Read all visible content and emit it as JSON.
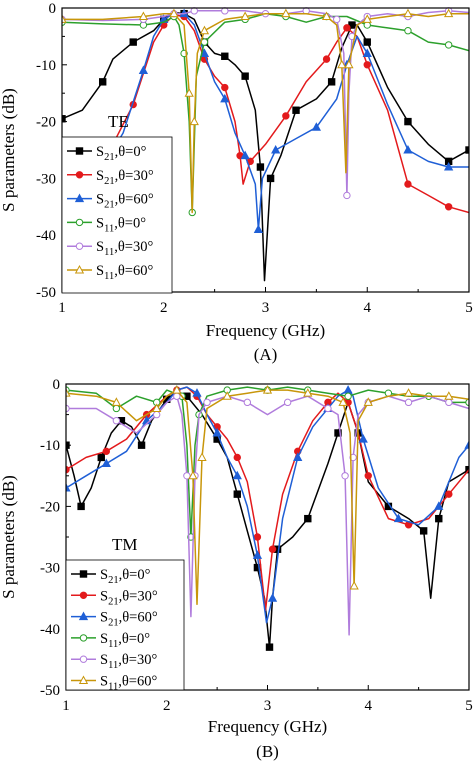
{
  "chart_data": [
    {
      "type": "line",
      "panel_label": "(A)",
      "mode_label": "TE",
      "xlabel": "Frequency (GHz)",
      "ylabel": "S parameters (dB)",
      "xlim": [
        1,
        5
      ],
      "ylim": [
        -50,
        0
      ],
      "xticks": [
        1,
        2,
        3,
        4,
        5
      ],
      "yticks": [
        0,
        -10,
        -20,
        -30,
        -40,
        -50
      ],
      "legend_position": "left",
      "legend_entries": [
        {
          "sub": "21",
          "angle": "0°"
        },
        {
          "sub": "21",
          "angle": "30°"
        },
        {
          "sub": "21",
          "angle": "60°"
        },
        {
          "sub": "11",
          "angle": "0°"
        },
        {
          "sub": "11",
          "angle": "30°"
        },
        {
          "sub": "11",
          "angle": "60°"
        }
      ],
      "series": [
        {
          "color": "#000000",
          "marker": "square",
          "fill": true,
          "x": [
            1.0,
            1.2,
            1.4,
            1.5,
            1.7,
            1.9,
            2.0,
            2.1,
            2.2,
            2.3,
            2.4,
            2.5,
            2.6,
            2.7,
            2.8,
            2.9,
            2.95,
            2.99,
            3.05,
            3.15,
            3.3,
            3.5,
            3.65,
            3.75,
            3.85,
            3.9,
            4.0,
            4.2,
            4.4,
            4.6,
            4.8,
            4.9,
            5.0
          ],
          "y": [
            -19.5,
            -18,
            -13,
            -9,
            -6,
            -4,
            -2,
            -0.8,
            -1,
            -2,
            -6,
            -8,
            -8.5,
            -10,
            -12,
            -18,
            -28,
            -48,
            -30,
            -26,
            -18,
            -16,
            -13,
            -7,
            -3,
            -3,
            -6,
            -14,
            -20,
            -24,
            -27,
            -26,
            -25
          ]
        },
        {
          "color": "#e31a1c",
          "marker": "circle",
          "fill": true,
          "x": [
            1.0,
            1.1,
            1.3,
            1.5,
            1.7,
            1.9,
            2.0,
            2.1,
            2.2,
            2.3,
            2.4,
            2.5,
            2.6,
            2.7,
            2.75,
            2.78,
            2.85,
            3.0,
            3.2,
            3.4,
            3.6,
            3.7,
            3.8,
            3.9,
            4.0,
            4.2,
            4.4,
            4.6,
            4.8,
            5.0
          ],
          "y": [
            -29,
            -28,
            -26,
            -24,
            -17,
            -6,
            -3,
            -1.2,
            -1.5,
            -4,
            -9,
            -12,
            -14,
            -20,
            -26,
            -31,
            -27,
            -24,
            -19,
            -13,
            -9,
            -6,
            -3.5,
            -5,
            -10,
            -18,
            -31,
            -33,
            -35,
            -36
          ]
        },
        {
          "color": "#1f5fd6",
          "marker": "triangle",
          "fill": true,
          "x": [
            1.0,
            1.2,
            1.4,
            1.6,
            1.8,
            1.9,
            2.0,
            2.1,
            2.2,
            2.3,
            2.4,
            2.5,
            2.6,
            2.7,
            2.8,
            2.9,
            2.93,
            2.97,
            3.1,
            3.3,
            3.5,
            3.7,
            3.8,
            3.9,
            4.0,
            4.2,
            4.4,
            4.6,
            4.8,
            5.0
          ],
          "y": [
            -30,
            -30,
            -28,
            -22,
            -11,
            -5,
            -2,
            -1,
            -1,
            -3,
            -8,
            -13,
            -16,
            -22,
            -26,
            -31,
            -39,
            -30,
            -25,
            -23,
            -21,
            -16,
            -10,
            -5,
            -8,
            -17,
            -25,
            -27,
            -28,
            -28
          ]
        },
        {
          "color": "#2ca02c",
          "marker": "circle",
          "fill": false,
          "x": [
            1.0,
            1.4,
            1.8,
            2.0,
            2.1,
            2.15,
            2.2,
            2.25,
            2.28,
            2.32,
            2.4,
            2.6,
            2.8,
            3.0,
            3.2,
            3.4,
            3.6,
            3.8,
            4.0,
            4.2,
            4.4,
            4.6,
            4.8,
            5.0
          ],
          "y": [
            -2.5,
            -2.8,
            -3,
            -2.5,
            -1.5,
            -3,
            -8,
            -20,
            -36,
            -12,
            -6,
            -2.5,
            -2,
            -1,
            -1.5,
            -2.5,
            -1.5,
            -1.5,
            -3,
            -3.5,
            -4,
            -6,
            -6.5,
            -7.5
          ]
        },
        {
          "color": "#b07cdc",
          "marker": "circle",
          "fill": false,
          "x": [
            1.0,
            1.4,
            1.8,
            2.0,
            2.1,
            2.2,
            2.3,
            2.4,
            2.6,
            2.8,
            3.0,
            3.2,
            3.4,
            3.6,
            3.7,
            3.77,
            3.8,
            3.82,
            3.85,
            3.9,
            4.0,
            4.2,
            4.4,
            4.6,
            4.8,
            5.0
          ],
          "y": [
            -2,
            -2.2,
            -2,
            -1.5,
            -1,
            -1,
            -0.5,
            -0.5,
            -0.5,
            -0.5,
            -1,
            -1,
            -0.5,
            -1,
            -2,
            -8,
            -33,
            -15,
            -5,
            -3,
            -1.5,
            -1,
            -1.5,
            -0.8,
            -0.5,
            -0.8
          ]
        },
        {
          "color": "#c8960a",
          "marker": "triangle",
          "fill": false,
          "x": [
            1.0,
            1.4,
            1.8,
            2.0,
            2.1,
            2.2,
            2.25,
            2.28,
            2.3,
            2.33,
            2.4,
            2.6,
            2.8,
            3.0,
            3.2,
            3.4,
            3.6,
            3.7,
            3.75,
            3.79,
            3.82,
            3.9,
            4.0,
            4.2,
            4.4,
            4.6,
            4.8,
            5.0
          ],
          "y": [
            -2,
            -2,
            -1.5,
            -1,
            -1,
            -3,
            -15,
            -36,
            -20,
            -8,
            -4,
            -2,
            -1.5,
            -1,
            -1,
            -1,
            -1.5,
            -3,
            -10,
            -29,
            -10,
            -3,
            -2,
            -1.5,
            -1,
            -1.5,
            -1,
            -1
          ]
        }
      ]
    },
    {
      "type": "line",
      "panel_label": "(B)",
      "mode_label": "TM",
      "xlabel": "Frequency (GHz)",
      "ylabel": "S parameters (dB)",
      "xlim": [
        1,
        5
      ],
      "ylim": [
        -50,
        0
      ],
      "xticks": [
        1,
        2,
        3,
        4,
        5
      ],
      "yticks": [
        0,
        -10,
        -20,
        -30,
        -40,
        -50
      ],
      "legend_position": "left",
      "legend_entries": [
        {
          "sub": "21",
          "angle": "0°"
        },
        {
          "sub": "21",
          "angle": "30°"
        },
        {
          "sub": "21",
          "angle": "60°"
        },
        {
          "sub": "11",
          "angle": "0°"
        },
        {
          "sub": "11",
          "angle": "30°"
        },
        {
          "sub": "11",
          "angle": "60°"
        }
      ],
      "series": [
        {
          "color": "#000000",
          "marker": "square",
          "fill": true,
          "x": [
            1.0,
            1.08,
            1.15,
            1.25,
            1.35,
            1.45,
            1.55,
            1.65,
            1.75,
            1.85,
            2.0,
            2.1,
            2.2,
            2.35,
            2.5,
            2.6,
            2.7,
            2.8,
            2.9,
            2.97,
            3.02,
            3.05,
            3.1,
            3.25,
            3.4,
            3.6,
            3.7,
            3.8,
            3.9,
            4.0,
            4.2,
            4.4,
            4.55,
            4.62,
            4.7,
            4.8,
            5.0
          ],
          "y": [
            -10,
            -15,
            -20,
            -17,
            -12,
            -8,
            -6,
            -7,
            -10,
            -6,
            -2.5,
            -1.2,
            -2,
            -5,
            -9,
            -12,
            -18,
            -24,
            -30,
            -35,
            -43,
            -35,
            -27,
            -25,
            -22,
            -13,
            -8,
            -3,
            -8,
            -16,
            -20,
            -22,
            -24,
            -35,
            -22,
            -16,
            -14
          ]
        },
        {
          "color": "#e31a1c",
          "marker": "circle",
          "fill": true,
          "x": [
            1.0,
            1.2,
            1.4,
            1.6,
            1.8,
            2.0,
            2.1,
            2.2,
            2.3,
            2.4,
            2.5,
            2.6,
            2.7,
            2.8,
            2.9,
            2.98,
            3.05,
            3.15,
            3.3,
            3.45,
            3.6,
            3.7,
            3.8,
            3.9,
            4.0,
            4.2,
            4.4,
            4.6,
            4.8,
            5.0
          ],
          "y": [
            -14,
            -12,
            -11,
            -9,
            -5,
            -2,
            -1,
            -0.5,
            -2,
            -5,
            -7,
            -9,
            -12,
            -16,
            -25,
            -37,
            -27,
            -18,
            -11,
            -6,
            -3,
            -1.5,
            -3,
            -8,
            -15,
            -22,
            -23,
            -22,
            -18,
            -14
          ]
        },
        {
          "color": "#1f5fd6",
          "marker": "triangle",
          "fill": true,
          "x": [
            1.0,
            1.2,
            1.4,
            1.6,
            1.8,
            2.0,
            2.1,
            2.2,
            2.3,
            2.4,
            2.5,
            2.6,
            2.7,
            2.8,
            2.9,
            2.99,
            3.05,
            3.15,
            3.3,
            3.45,
            3.6,
            3.7,
            3.8,
            3.85,
            3.95,
            4.1,
            4.3,
            4.5,
            4.7,
            4.9,
            5.0
          ],
          "y": [
            -17,
            -15,
            -13,
            -11,
            -6,
            -3,
            -1,
            -0.5,
            -1.5,
            -5,
            -8,
            -12,
            -15,
            -20,
            -28,
            -39,
            -35,
            -22,
            -12,
            -7,
            -4,
            -2,
            -1,
            -2,
            -9,
            -17,
            -22,
            -23,
            -20,
            -12,
            -10
          ]
        },
        {
          "color": "#2ca02c",
          "marker": "circle",
          "fill": false,
          "x": [
            1.0,
            1.3,
            1.5,
            1.7,
            1.9,
            2.0,
            2.15,
            2.2,
            2.24,
            2.28,
            2.32,
            2.4,
            2.6,
            2.8,
            3.0,
            3.2,
            3.4,
            3.6,
            3.8,
            4.0,
            4.2,
            4.4,
            4.6,
            4.8,
            5.0
          ],
          "y": [
            -1,
            -1.5,
            -4,
            -2,
            -3,
            -1,
            -2,
            -10,
            -25,
            -10,
            -5,
            -2,
            -1,
            -0.5,
            -1,
            -0.5,
            -1,
            -1.5,
            -2,
            -1,
            -1.5,
            -2,
            -2,
            -3,
            -3
          ]
        },
        {
          "color": "#b07cdc",
          "marker": "circle",
          "fill": false,
          "x": [
            1.0,
            1.3,
            1.5,
            1.7,
            1.9,
            2.0,
            2.1,
            2.15,
            2.2,
            2.24,
            2.28,
            2.32,
            2.4,
            2.6,
            2.8,
            3.0,
            3.2,
            3.4,
            3.6,
            3.7,
            3.77,
            3.81,
            3.85,
            3.9,
            4.0,
            4.2,
            4.4,
            4.6,
            4.8,
            5.0
          ],
          "y": [
            -4,
            -4,
            -6,
            -8,
            -5,
            -3,
            -2,
            -5,
            -15,
            -38,
            -15,
            -5,
            -3,
            -2,
            -3,
            -5,
            -3,
            -2,
            -4,
            -5,
            -15,
            -41,
            -12,
            -5,
            -3,
            -2,
            -3,
            -2,
            -3,
            -4
          ]
        },
        {
          "color": "#c8960a",
          "marker": "triangle",
          "fill": false,
          "x": [
            1.0,
            1.3,
            1.5,
            1.7,
            1.9,
            2.0,
            2.1,
            2.2,
            2.26,
            2.3,
            2.35,
            2.4,
            2.6,
            2.8,
            3.0,
            3.2,
            3.4,
            3.6,
            3.75,
            3.82,
            3.86,
            3.9,
            4.0,
            4.2,
            4.4,
            4.6,
            4.8,
            5.0
          ],
          "y": [
            -1.5,
            -2,
            -3,
            -6,
            -4,
            -2,
            -1,
            -3,
            -15,
            -36,
            -12,
            -4,
            -2,
            -1.5,
            -1,
            -1,
            -1.5,
            -2,
            -3,
            -8,
            -33,
            -6,
            -3,
            -2,
            -1.5,
            -2,
            -2,
            -2.5
          ]
        }
      ]
    }
  ]
}
